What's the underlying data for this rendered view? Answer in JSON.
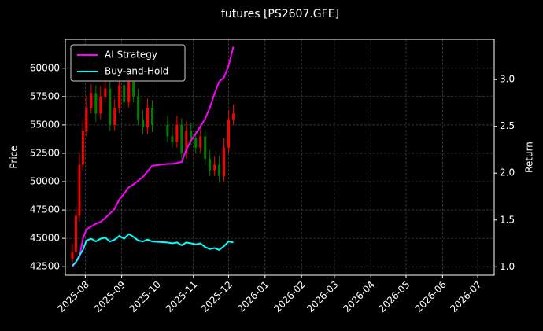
{
  "chart_data": {
    "type": "candlestick",
    "title": "futures [PS2607.GFE]",
    "ylabel": "Price",
    "y2label": "Return",
    "x": [
      -11,
      -8,
      -5,
      -2,
      1,
      5,
      9,
      13,
      17,
      21,
      25,
      29,
      33,
      37,
      41,
      45,
      49,
      53,
      57,
      70,
      74,
      78,
      82,
      86,
      90,
      94,
      98,
      102,
      106,
      110,
      114,
      118,
      122,
      126
    ],
    "open": [
      43200,
      43800,
      47000,
      51500,
      54500,
      56500,
      57800,
      56000,
      57500,
      58200,
      55000,
      56500,
      58500,
      57000,
      58800,
      57500,
      55500,
      54800,
      56500,
      55000,
      54000,
      53500,
      55000,
      52500,
      54500,
      53800,
      53000,
      54000,
      52000,
      51000,
      51500,
      50500,
      53000,
      55500
    ],
    "high": [
      44500,
      47800,
      52500,
      55500,
      57500,
      58600,
      58500,
      58400,
      59000,
      58900,
      57300,
      59200,
      59000,
      59500,
      59300,
      58200,
      56300,
      57300,
      57200,
      55800,
      54800,
      55800,
      55600,
      55300,
      55200,
      54500,
      54800,
      54600,
      52800,
      52200,
      52300,
      53800,
      56300,
      56800
    ],
    "low": [
      42800,
      43300,
      46500,
      51000,
      54000,
      56000,
      55300,
      55500,
      57000,
      54500,
      54500,
      56000,
      56500,
      56500,
      57000,
      55000,
      54200,
      54200,
      54400,
      53500,
      53000,
      53000,
      52000,
      52000,
      53200,
      52500,
      52500,
      51500,
      50500,
      50500,
      49900,
      50000,
      52500,
      55000
    ],
    "close": [
      43800,
      47000,
      51500,
      54500,
      56500,
      57800,
      56000,
      57500,
      58200,
      55000,
      56500,
      58500,
      57000,
      58800,
      57500,
      55500,
      54800,
      56500,
      55000,
      54000,
      53500,
      55000,
      52500,
      54500,
      53800,
      53000,
      54000,
      52000,
      51000,
      51500,
      50500,
      53000,
      55500,
      56000
    ],
    "up_color": "#ff0000",
    "down_color": "#008000",
    "series": [
      {
        "name": "AI Strategy",
        "color": "#ff00ff",
        "axis": "y2",
        "values": [
          1.0,
          1.05,
          1.1,
          1.3,
          1.4,
          1.43,
          1.46,
          1.48,
          1.52,
          1.57,
          1.62,
          1.72,
          1.78,
          1.85,
          1.88,
          1.92,
          1.96,
          2.02,
          2.08,
          2.1,
          2.1,
          2.11,
          2.12,
          2.25,
          2.35,
          2.42,
          2.5,
          2.58,
          2.7,
          2.85,
          2.98,
          3.02,
          3.15,
          3.35
        ]
      },
      {
        "name": "Buy-and-Hold",
        "color": "#00ffff",
        "axis": "y2",
        "values": [
          1.01,
          1.05,
          1.12,
          1.18,
          1.28,
          1.3,
          1.27,
          1.3,
          1.31,
          1.27,
          1.29,
          1.33,
          1.3,
          1.35,
          1.32,
          1.28,
          1.27,
          1.29,
          1.27,
          1.26,
          1.25,
          1.26,
          1.23,
          1.26,
          1.25,
          1.24,
          1.25,
          1.21,
          1.19,
          1.2,
          1.18,
          1.22,
          1.27,
          1.26
        ]
      }
    ],
    "xlim": [
      -17,
      348
    ],
    "xticks": [
      {
        "value": 0,
        "label": "2025-08"
      },
      {
        "value": 31,
        "label": "2025-09"
      },
      {
        "value": 61,
        "label": "2025-10"
      },
      {
        "value": 92,
        "label": "2025-11"
      },
      {
        "value": 122,
        "label": "2025-12"
      },
      {
        "value": 153,
        "label": "2026-01"
      },
      {
        "value": 184,
        "label": "2026-02"
      },
      {
        "value": 212,
        "label": "2026-03"
      },
      {
        "value": 243,
        "label": "2026-04"
      },
      {
        "value": 273,
        "label": "2026-05"
      },
      {
        "value": 304,
        "label": "2026-06"
      },
      {
        "value": 334,
        "label": "2026-07"
      }
    ],
    "ylim": [
      41750,
      62550
    ],
    "yticks": [
      42500,
      45000,
      47500,
      50000,
      52500,
      55000,
      57500,
      60000
    ],
    "y2lim": [
      0.91,
      3.43
    ],
    "y2ticks": [
      {
        "value": 1,
        "label": "1.0"
      },
      {
        "value": 1.5,
        "label": "1.5"
      },
      {
        "value": 2,
        "label": "2.0"
      },
      {
        "value": 2.5,
        "label": "2.5"
      },
      {
        "value": 3,
        "label": "3.0"
      }
    ],
    "grid": true,
    "legend": "upper left"
  }
}
